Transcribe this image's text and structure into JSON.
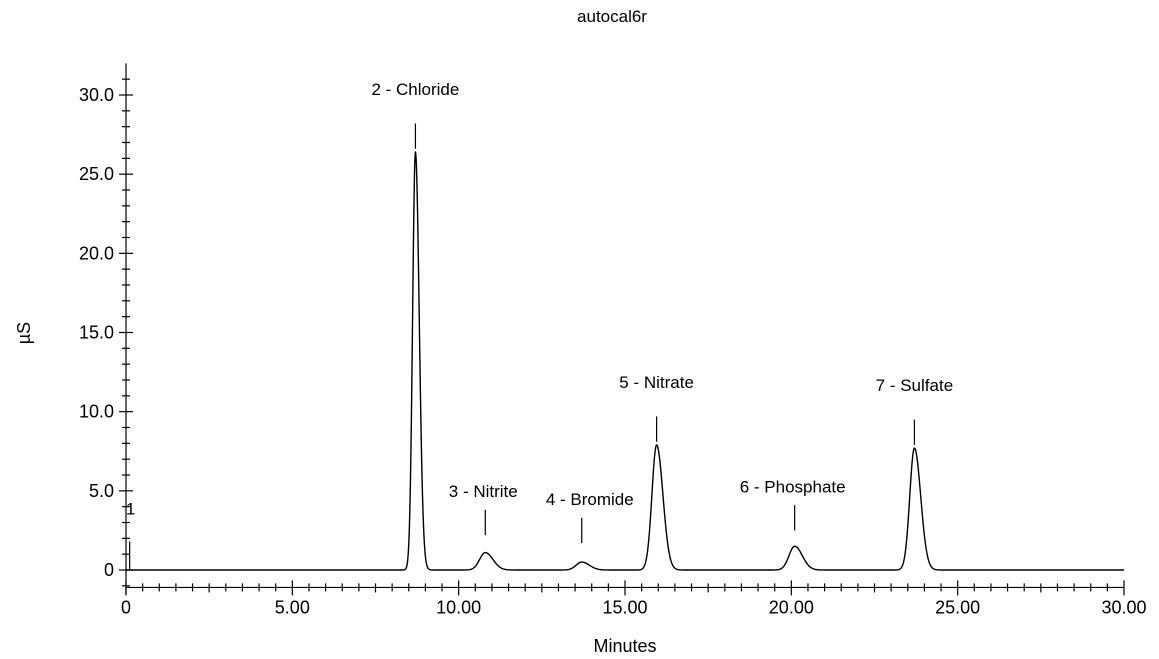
{
  "chart_data": {
    "type": "line",
    "title": "autocal6r",
    "xlabel": "Minutes",
    "ylabel": "µS",
    "xlim": [
      0,
      30
    ],
    "ylim": [
      -1.5,
      32
    ],
    "x_ticks": [
      0,
      5,
      10,
      15,
      20,
      25,
      30
    ],
    "x_tick_labels": [
      "0",
      "5.00",
      "10.00",
      "15.00",
      "20.00",
      "25.00",
      "30.00"
    ],
    "y_ticks": [
      0,
      5,
      10,
      15,
      20,
      25,
      30
    ],
    "y_tick_labels": [
      "0",
      "5.0",
      "10.0",
      "15.0",
      "20.0",
      "25.0",
      "30.0"
    ],
    "grid": false,
    "injection_marker": {
      "label": "1",
      "x": 0.05
    },
    "series": [
      {
        "peaks": [
          {
            "label": "2 - Chloride",
            "x": 8.7,
            "height": 26.4
          },
          {
            "label": "3 - Nitrite",
            "x": 10.8,
            "height": 1.1
          },
          {
            "label": "4 - Bromide",
            "x": 13.7,
            "height": 0.5
          },
          {
            "label": "5 - Nitrate",
            "x": 15.95,
            "height": 7.9
          },
          {
            "label": "6 - Phosphate",
            "x": 20.1,
            "height": 1.5
          },
          {
            "label": "7 - Sulfate",
            "x": 23.7,
            "height": 7.7
          }
        ]
      }
    ]
  }
}
